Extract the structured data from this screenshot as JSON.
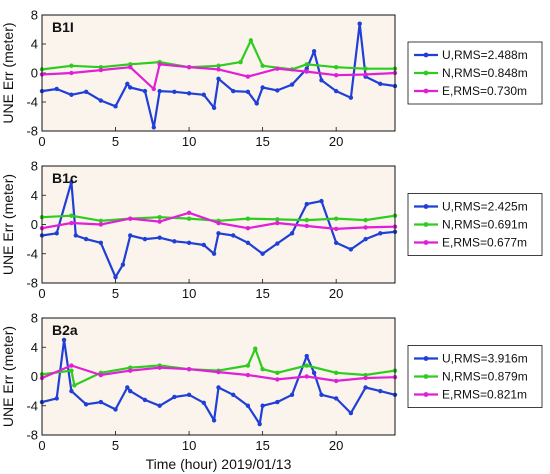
{
  "chart_data": [
    {
      "type": "line",
      "title": "B1I",
      "xlabel": "",
      "ylabel": "UNE Err (meter)",
      "xlim": [
        0,
        24
      ],
      "ylim": [
        -8,
        8
      ],
      "xticks": [
        0,
        5,
        10,
        15,
        20
      ],
      "yticks": [
        -8,
        -4,
        0,
        4,
        8
      ],
      "legend_position": "right",
      "series": [
        {
          "name": "U,RMS=2.488m",
          "color": "#1f3fd6",
          "x": [
            0,
            1,
            2,
            3,
            4,
            5,
            5.8,
            6,
            7,
            7.6,
            8,
            9,
            10,
            11,
            11.7,
            12,
            13,
            14,
            14.6,
            15,
            16,
            17,
            18,
            18.5,
            19,
            20,
            21,
            21.6,
            22,
            23,
            24
          ],
          "y": [
            -2.5,
            -2.2,
            -3.0,
            -2.6,
            -3.8,
            -4.6,
            -1.5,
            -2.0,
            -2.5,
            -7.5,
            -2.5,
            -2.6,
            -2.8,
            -3.0,
            -4.8,
            -0.8,
            -2.5,
            -2.6,
            -4.2,
            -2.0,
            -2.4,
            -1.6,
            0.6,
            3.0,
            -1.0,
            -2.5,
            -3.4,
            6.8,
            -0.5,
            -1.5,
            -1.8
          ]
        },
        {
          "name": "N,RMS=0.848m",
          "color": "#2ecc1f",
          "x": [
            0,
            2,
            4,
            6,
            8,
            10,
            12,
            13.5,
            14.2,
            15,
            17,
            18,
            20,
            22,
            24
          ],
          "y": [
            0.5,
            1.0,
            0.8,
            1.2,
            1.5,
            0.8,
            1.0,
            1.5,
            4.5,
            1.0,
            0.5,
            1.2,
            0.8,
            0.6,
            0.6
          ]
        },
        {
          "name": "E,RMS=0.730m",
          "color": "#e01fd6",
          "x": [
            0,
            2,
            4,
            6,
            7.6,
            8,
            10,
            12,
            14,
            16,
            18,
            20,
            22,
            24
          ],
          "y": [
            -0.2,
            0.0,
            0.4,
            0.8,
            -2.2,
            1.2,
            0.8,
            0.5,
            -0.5,
            0.6,
            0.2,
            -0.3,
            -0.2,
            0.0
          ]
        }
      ]
    },
    {
      "type": "line",
      "title": "B1c",
      "xlabel": "",
      "ylabel": "UNE Err (meter)",
      "xlim": [
        0,
        24
      ],
      "ylim": [
        -8,
        8
      ],
      "xticks": [
        0,
        5,
        10,
        15,
        20
      ],
      "yticks": [
        -8,
        -4,
        0,
        4,
        8
      ],
      "legend_position": "right",
      "series": [
        {
          "name": "U,RMS=2.425m",
          "color": "#1f3fd6",
          "x": [
            0,
            1,
            2,
            2.3,
            3,
            4,
            5,
            5.5,
            6,
            7,
            8,
            9,
            10,
            11,
            11.7,
            12,
            13,
            14,
            15,
            16,
            17,
            18,
            19,
            20,
            21,
            22,
            23,
            24
          ],
          "y": [
            -1.5,
            -1.2,
            5.8,
            -1.5,
            -2.0,
            -2.5,
            -7.2,
            -5.5,
            -1.5,
            -2.0,
            -1.8,
            -2.3,
            -2.5,
            -2.8,
            -4.0,
            -1.2,
            -1.5,
            -2.5,
            -4.0,
            -2.6,
            -1.2,
            2.8,
            3.2,
            -2.5,
            -3.4,
            -2.0,
            -1.2,
            -1.0
          ]
        },
        {
          "name": "N,RMS=0.691m",
          "color": "#2ecc1f",
          "x": [
            0,
            2,
            4,
            6,
            8,
            10,
            12,
            14,
            16,
            18,
            20,
            22,
            24
          ],
          "y": [
            1.0,
            1.2,
            0.5,
            0.8,
            1.0,
            0.8,
            0.5,
            0.8,
            0.7,
            0.6,
            0.8,
            0.6,
            1.2
          ]
        },
        {
          "name": "E,RMS=0.677m",
          "color": "#e01fd6",
          "x": [
            0,
            2,
            4,
            6,
            8,
            10,
            12,
            14,
            16,
            18,
            20,
            22,
            24
          ],
          "y": [
            -0.5,
            0.2,
            0.0,
            0.8,
            0.4,
            1.6,
            0.2,
            -0.5,
            0.2,
            -0.2,
            -0.6,
            -0.4,
            -0.3
          ]
        }
      ]
    },
    {
      "type": "line",
      "title": "B2a",
      "xlabel": "Time (hour)  2019/01/13",
      "ylabel": "UNE Err (meter)",
      "xlim": [
        0,
        24
      ],
      "ylim": [
        -8,
        8
      ],
      "xticks": [
        0,
        5,
        10,
        15,
        20
      ],
      "yticks": [
        -8,
        -4,
        0,
        4,
        8
      ],
      "legend_position": "right",
      "series": [
        {
          "name": "U,RMS=3.916m",
          "color": "#1f3fd6",
          "x": [
            0,
            1,
            1.5,
            2,
            3,
            4,
            5,
            5.8,
            6,
            7,
            8,
            9,
            10,
            11,
            11.7,
            12,
            13,
            14,
            14.8,
            15,
            16,
            17,
            18,
            18.5,
            19,
            20,
            21,
            22,
            23,
            24
          ],
          "y": [
            -3.5,
            -3.0,
            5.0,
            -2.0,
            -3.8,
            -3.5,
            -4.5,
            -1.5,
            -2.0,
            -3.2,
            -4.0,
            -2.8,
            -2.5,
            -3.6,
            -6.0,
            -1.5,
            -2.5,
            -4.0,
            -6.5,
            -4.0,
            -3.5,
            -2.5,
            2.8,
            0.5,
            -2.5,
            -3.0,
            -5.0,
            -1.5,
            -2.0,
            -2.5
          ]
        },
        {
          "name": "N,RMS=0.879m",
          "color": "#2ecc1f",
          "x": [
            0,
            2,
            2.2,
            4,
            6,
            8,
            10,
            12,
            14,
            14.5,
            15,
            16,
            18,
            20,
            22,
            24
          ],
          "y": [
            0.3,
            0.8,
            -1.2,
            0.5,
            1.2,
            1.5,
            1.0,
            0.8,
            1.5,
            3.8,
            1.0,
            0.5,
            1.5,
            0.5,
            0.2,
            0.8
          ]
        },
        {
          "name": "E,RMS=0.821m",
          "color": "#e01fd6",
          "x": [
            0,
            2,
            4,
            6,
            8,
            10,
            12,
            14,
            16,
            18,
            20,
            22,
            24
          ],
          "y": [
            -0.2,
            1.5,
            0.2,
            0.8,
            1.2,
            1.0,
            0.6,
            0.2,
            -0.4,
            0.0,
            -0.6,
            -0.2,
            -0.1
          ]
        }
      ]
    }
  ]
}
